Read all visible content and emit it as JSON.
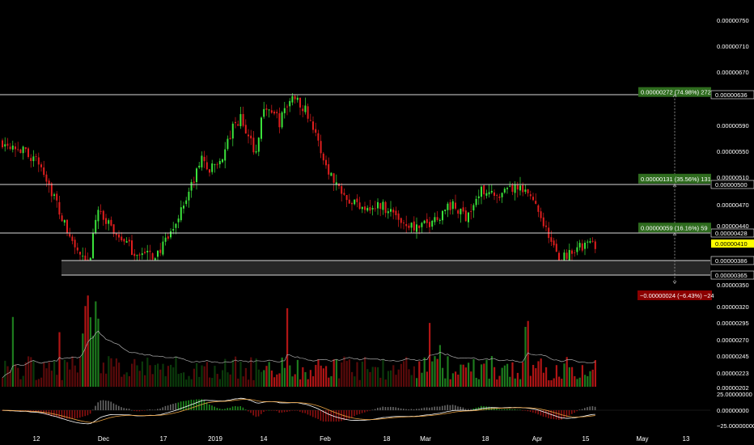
{
  "colors": {
    "background": "#000000",
    "bull": "#3be23b",
    "bear": "#e01e1e",
    "level": "#d8d8d8",
    "volume_bull": "#0b3a0b",
    "volume_bear": "#5a0a0a",
    "volume_bull_bright": "#1d7a1d",
    "volume_bear_bright": "#b01515",
    "ma_line": "#aaaaaa",
    "tag_green": "#2e6b1e",
    "tag_red": "#8b0000",
    "tag_current": "#ffff00"
  },
  "chart_data": {
    "type": "candlestick",
    "price_axis": {
      "ylim": [
        3.45e-06,
        7.6e-06
      ],
      "ticks": [
        "0.00000750",
        "0.00000710",
        "0.00000670",
        "0.00000590",
        "0.00000550",
        "0.00000510",
        "0.00000470",
        "0.00000440",
        "0.00000350"
      ],
      "tick_values": [
        7.5e-06,
        7.1e-06,
        6.7e-06,
        5.9e-06,
        5.5e-06,
        5.1e-06,
        4.7e-06,
        4.4e-06,
        3.5e-06
      ]
    },
    "x_axis": {
      "labels": [
        "12",
        "Dec",
        "17",
        "2019",
        "14",
        "Feb",
        "18",
        "Mar",
        "18",
        "Apr",
        "15",
        "May",
        "13"
      ]
    },
    "levels": [
      {
        "value": 6.36e-06,
        "label": "0.00000636"
      },
      {
        "value": 5e-06,
        "label": "0.00000500"
      },
      {
        "value": 4.28e-06,
        "label": "0.00000428"
      },
      {
        "value": 3.86e-06,
        "label": "0.00000386"
      },
      {
        "value": 3.65e-06,
        "label": "0.00000365"
      }
    ],
    "current_price": {
      "value": 4.1e-06,
      "label": "0.00000410"
    },
    "measure_tags": [
      {
        "label": "0.00000272 (74.98%) 272",
        "value": 6.4e-06,
        "color": "green"
      },
      {
        "label": "0.00000131 (35.56%) 131",
        "value": 5.08e-06,
        "color": "green"
      },
      {
        "label": "0.00000059 (16.16%) 59",
        "value": 4.37e-06,
        "color": "green"
      },
      {
        "label": "−0.00000024 (−6.43%) −24",
        "value": 3.35e-06,
        "color": "red"
      }
    ],
    "volume_axis": {
      "ticks": [
        "0.00000320",
        "0.00000295",
        "0.00000270",
        "0.00000245",
        "0.00000223",
        "0.00000202"
      ]
    },
    "oscillator_axis": {
      "ticks": [
        "25.00000000",
        "0.00000000",
        "−25.00000000"
      ]
    },
    "key_points": [
      [
        0,
        5.65
      ],
      [
        4,
        5.62
      ],
      [
        8,
        5.5
      ],
      [
        12,
        5.4
      ],
      [
        16,
        5.2
      ],
      [
        19,
        4.9
      ],
      [
        22,
        4.6
      ],
      [
        25,
        4.3
      ],
      [
        28,
        4.05
      ],
      [
        31,
        3.85
      ],
      [
        33,
        3.72
      ],
      [
        35,
        4.2
      ],
      [
        37,
        4.7
      ],
      [
        39,
        4.5
      ],
      [
        42,
        4.35
      ],
      [
        46,
        4.2
      ],
      [
        50,
        4.0
      ],
      [
        54,
        3.95
      ],
      [
        58,
        3.92
      ],
      [
        62,
        4.05
      ],
      [
        65,
        4.25
      ],
      [
        68,
        4.55
      ],
      [
        71,
        4.8
      ],
      [
        74,
        5.05
      ],
      [
        77,
        5.4
      ],
      [
        80,
        5.2
      ],
      [
        83,
        5.3
      ],
      [
        86,
        5.5
      ],
      [
        89,
        5.85
      ],
      [
        92,
        6.0
      ],
      [
        95,
        5.7
      ],
      [
        98,
        5.5
      ],
      [
        101,
        6.2
      ],
      [
        104,
        6.1
      ],
      [
        107,
        5.95
      ],
      [
        110,
        6.2
      ],
      [
        113,
        6.35
      ],
      [
        116,
        6.2
      ],
      [
        119,
        6.0
      ],
      [
        122,
        5.6
      ],
      [
        125,
        5.3
      ],
      [
        128,
        5.05
      ],
      [
        131,
        4.95
      ],
      [
        134,
        4.8
      ],
      [
        137,
        4.7
      ],
      [
        140,
        4.7
      ],
      [
        143,
        4.65
      ],
      [
        146,
        4.7
      ],
      [
        149,
        4.65
      ],
      [
        152,
        4.55
      ],
      [
        155,
        4.45
      ],
      [
        158,
        4.4
      ],
      [
        161,
        4.35
      ],
      [
        164,
        4.42
      ],
      [
        167,
        4.5
      ],
      [
        170,
        4.6
      ],
      [
        173,
        4.7
      ],
      [
        176,
        4.6
      ],
      [
        179,
        4.55
      ],
      [
        182,
        4.7
      ],
      [
        185,
        4.9
      ],
      [
        188,
        4.95
      ],
      [
        191,
        4.75
      ],
      [
        194,
        4.85
      ],
      [
        197,
        4.95
      ],
      [
        200,
        4.9
      ],
      [
        203,
        4.85
      ],
      [
        206,
        4.75
      ],
      [
        209,
        4.45
      ],
      [
        212,
        4.1
      ],
      [
        215,
        3.88
      ],
      [
        218,
        3.95
      ],
      [
        221,
        4.05
      ],
      [
        224,
        4.05
      ],
      [
        227,
        4.1
      ],
      [
        229,
        4.1
      ]
    ],
    "price_unit_scale": 1e-06
  }
}
